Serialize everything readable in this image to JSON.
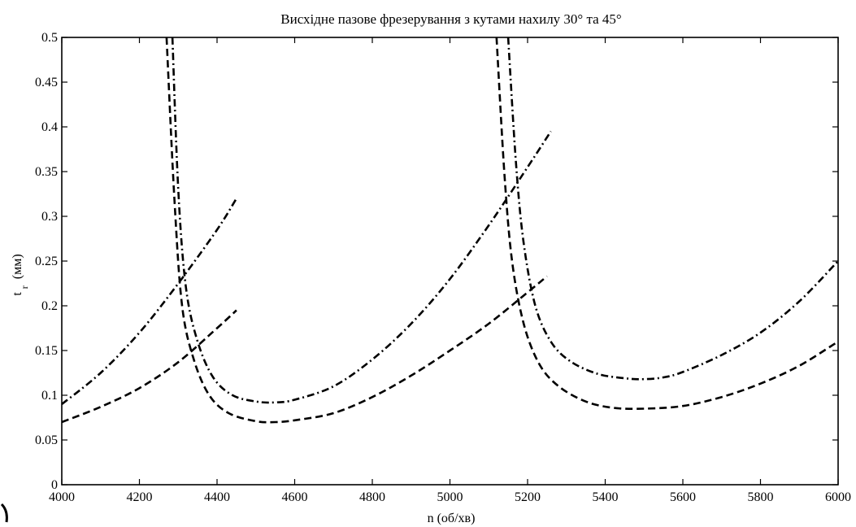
{
  "chart_data": {
    "type": "line",
    "title": "Висхідне пазове фрезерування з кутами нахилу 30° та 45°",
    "xlabel": "n (об/хв)",
    "ylabel_main": "t",
    "ylabel_sub": "r",
    "ylabel_unit": "(мм)",
    "xlim": [
      4000,
      6000
    ],
    "ylim": [
      0,
      0.5
    ],
    "x_ticks": [
      "4000",
      "4200",
      "4400",
      "4600",
      "4800",
      "5000",
      "5200",
      "5400",
      "5600",
      "5800",
      "6000"
    ],
    "y_ticks": [
      "0",
      "0.05",
      "0.1",
      "0.15",
      "0.2",
      "0.25",
      "0.3",
      "0.35",
      "0.4",
      "0.45",
      "0.5"
    ],
    "grid": false,
    "series": [
      {
        "style": "dashed",
        "x": [
          4000,
          4100,
          4200,
          4300,
          4400,
          4450
        ],
        "y": [
          0.07,
          0.087,
          0.108,
          0.137,
          0.175,
          0.195
        ]
      },
      {
        "style": "dashdot",
        "x": [
          4000,
          4100,
          4200,
          4300,
          4400,
          4450
        ],
        "y": [
          0.09,
          0.125,
          0.17,
          0.225,
          0.285,
          0.32
        ]
      },
      {
        "style": "dashed",
        "x": [
          4270,
          4290,
          4310,
          4340,
          4380,
          4430,
          4500,
          4550,
          4600,
          4700,
          4800,
          4900,
          5000,
          5100,
          5200,
          5250
        ],
        "y": [
          0.5,
          0.32,
          0.2,
          0.14,
          0.1,
          0.08,
          0.071,
          0.07,
          0.072,
          0.08,
          0.098,
          0.122,
          0.15,
          0.18,
          0.215,
          0.233
        ]
      },
      {
        "style": "dashdot",
        "x": [
          4285,
          4300,
          4320,
          4350,
          4390,
          4440,
          4500,
          4550,
          4600,
          4700,
          4800,
          4900,
          5000,
          5100,
          5200,
          5260
        ],
        "y": [
          0.5,
          0.33,
          0.22,
          0.16,
          0.12,
          0.1,
          0.093,
          0.092,
          0.095,
          0.11,
          0.14,
          0.18,
          0.23,
          0.29,
          0.355,
          0.395
        ]
      },
      {
        "style": "dashed",
        "x": [
          5120,
          5140,
          5160,
          5190,
          5230,
          5280,
          5350,
          5420,
          5500,
          5600,
          5700,
          5800,
          5900,
          6000
        ],
        "y": [
          0.5,
          0.35,
          0.25,
          0.18,
          0.135,
          0.11,
          0.093,
          0.086,
          0.085,
          0.088,
          0.098,
          0.113,
          0.133,
          0.16
        ]
      },
      {
        "style": "dashdot",
        "x": [
          5150,
          5170,
          5190,
          5220,
          5260,
          5310,
          5380,
          5450,
          5500,
          5550,
          5600,
          5700,
          5800,
          5900,
          6000
        ],
        "y": [
          0.5,
          0.36,
          0.27,
          0.2,
          0.16,
          0.138,
          0.124,
          0.119,
          0.118,
          0.12,
          0.126,
          0.145,
          0.17,
          0.205,
          0.25
        ]
      }
    ]
  }
}
